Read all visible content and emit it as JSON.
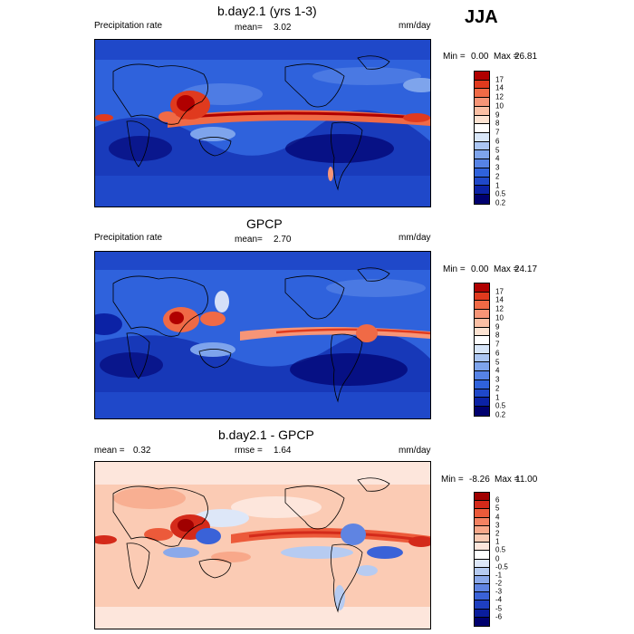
{
  "season": "JJA",
  "panels": [
    {
      "title": "b.day2.1 (yrs 1-3)",
      "left_label": "Precipitation rate",
      "mean_label": "mean=",
      "mean_value": "3.02",
      "units": "mm/day",
      "min_label": "Min =",
      "min_value": "0.00",
      "max_label": "Max =",
      "max_value": "26.81",
      "colorbar": {
        "colors": [
          "#b00000",
          "#e03a1e",
          "#f06a46",
          "#f79577",
          "#fbbfa4",
          "#fde3d2",
          "#ffffff",
          "#d8e6f9",
          "#abc6f3",
          "#7ea4ec",
          "#5683e6",
          "#2f62dc",
          "#1f48c9",
          "#0b22a5",
          "#00006e"
        ],
        "labels": [
          "17",
          "14",
          "12",
          "10",
          "9",
          "8",
          "7",
          "6",
          "5",
          "4",
          "3",
          "2",
          "1",
          "0.5",
          "0.2"
        ]
      }
    },
    {
      "title": "GPCP",
      "left_label": "Precipitation rate",
      "mean_label": "mean=",
      "mean_value": "2.70",
      "units": "mm/day",
      "min_label": "Min =",
      "min_value": "0.00",
      "max_label": "Max =",
      "max_value": "24.17",
      "colorbar": {
        "colors": [
          "#b00000",
          "#e03a1e",
          "#f06a46",
          "#f79577",
          "#fbbfa4",
          "#fde3d2",
          "#ffffff",
          "#d8e6f9",
          "#abc6f3",
          "#7ea4ec",
          "#5683e6",
          "#2f62dc",
          "#1f48c9",
          "#0b22a5",
          "#00006e"
        ],
        "labels": [
          "17",
          "14",
          "12",
          "10",
          "9",
          "8",
          "7",
          "6",
          "5",
          "4",
          "3",
          "2",
          "1",
          "0.5",
          "0.2"
        ]
      }
    },
    {
      "title": "b.day2.1 - GPCP",
      "mean_label": "mean =",
      "mean_value": "0.32",
      "rmse_label": "rmse =",
      "rmse_value": "1.64",
      "units": "mm/day",
      "min_label": "Min =",
      "min_value": "-8.26",
      "max_label": "Max =",
      "max_value": "11.00",
      "colorbar": {
        "colors": [
          "#a00000",
          "#d42a1a",
          "#ec5a3a",
          "#f48262",
          "#f8a88a",
          "#fbcbb4",
          "#fde6dc",
          "#ffffff",
          "#dde7f8",
          "#b6cbf1",
          "#8ba9ea",
          "#5f84e2",
          "#3a62d8",
          "#1e3fc0",
          "#0a1d9c",
          "#00006e"
        ],
        "labels": [
          "6",
          "5",
          "4",
          "3",
          "2",
          "1",
          "0.5",
          "0",
          "-0.5",
          "-1",
          "-2",
          "-3",
          "-4",
          "-5",
          "-6"
        ]
      }
    }
  ]
}
